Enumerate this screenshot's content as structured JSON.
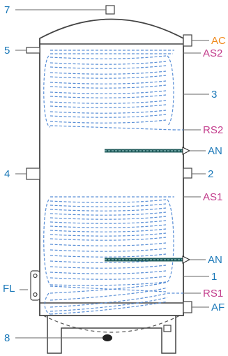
{
  "labels": {
    "n7": "7",
    "n5": "5",
    "n4": "4",
    "n8": "8",
    "fl": "FL",
    "ac": "AC",
    "as2": "AS2",
    "n3": "3",
    "rs2": "RS2",
    "an_top": "AN",
    "n2": "2",
    "as1": "AS1",
    "an_bottom": "AN",
    "n1": "1",
    "rs1": "RS1",
    "af": "AF"
  },
  "colors": {
    "blue_label": "#1a78b8",
    "orange_label": "#f08a1e",
    "magenta_label": "#c23b8b",
    "coil": "#5a8fd6",
    "outline": "#444444",
    "anode": "#1f5a5a"
  }
}
